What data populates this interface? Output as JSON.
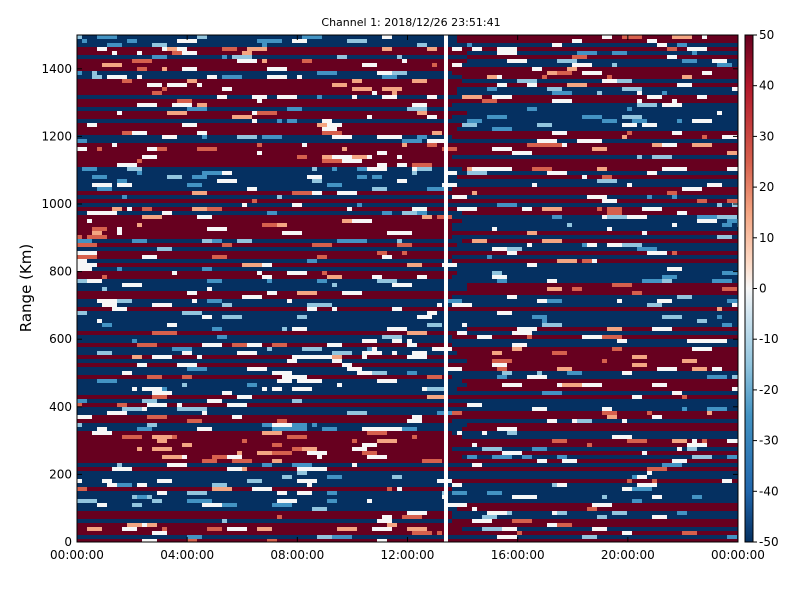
{
  "chart_data": {
    "type": "heatmap",
    "title": "Channel 1: 2018/12/26 23:51:41",
    "xlabel": "",
    "ylabel": "Range (Km)",
    "x_ticks": [
      "00:00:00",
      "04:00:00",
      "08:00:00",
      "12:00:00",
      "16:00:00",
      "20:00:00",
      "00:00:00"
    ],
    "y_ticks": [
      0,
      200,
      400,
      600,
      800,
      1000,
      1200,
      1400
    ],
    "ylim": [
      0,
      1500
    ],
    "colorbar": {
      "ticks": [
        50,
        40,
        30,
        20,
        10,
        0,
        -10,
        -20,
        -30,
        -40,
        -50
      ],
      "range": [
        -50,
        50
      ],
      "colormap": "RdBu_r"
    },
    "colors": {
      "dark_red": "#67001f",
      "dark_blue": "#053061"
    },
    "grid": false
  }
}
